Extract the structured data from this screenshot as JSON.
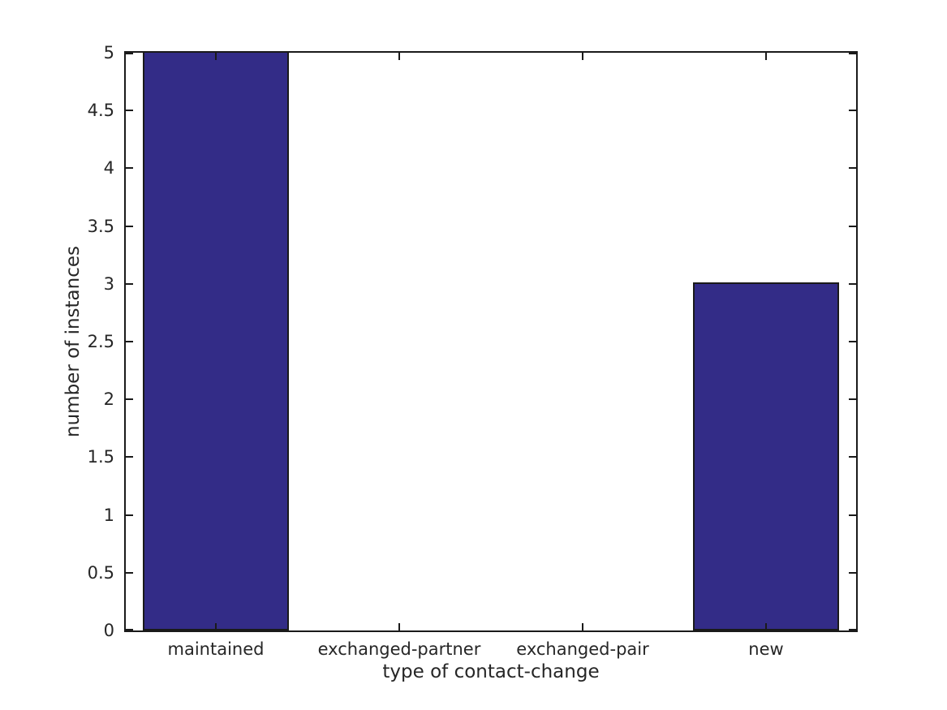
{
  "figure": {
    "background": "#ffffff"
  },
  "chart_data": {
    "type": "bar",
    "categories": [
      "maintained",
      "exchanged-partner",
      "exchanged-pair",
      "new"
    ],
    "values": [
      5,
      0,
      0,
      3
    ],
    "xlabel": "type of contact-change",
    "ylabel": "number of instances",
    "ylim": [
      0,
      5
    ],
    "y_ticks": [
      "0",
      "0.5",
      "1",
      "1.5",
      "2",
      "2.5",
      "3",
      "3.5",
      "4",
      "4.5",
      "5"
    ],
    "bar_width_fraction": 0.8,
    "bar_color": "#332c87",
    "bar_edge_color": "#1a1a1a",
    "axis_color": "#1a1a1a",
    "text_color": "#262626",
    "grid": false,
    "legend_position": "none"
  }
}
